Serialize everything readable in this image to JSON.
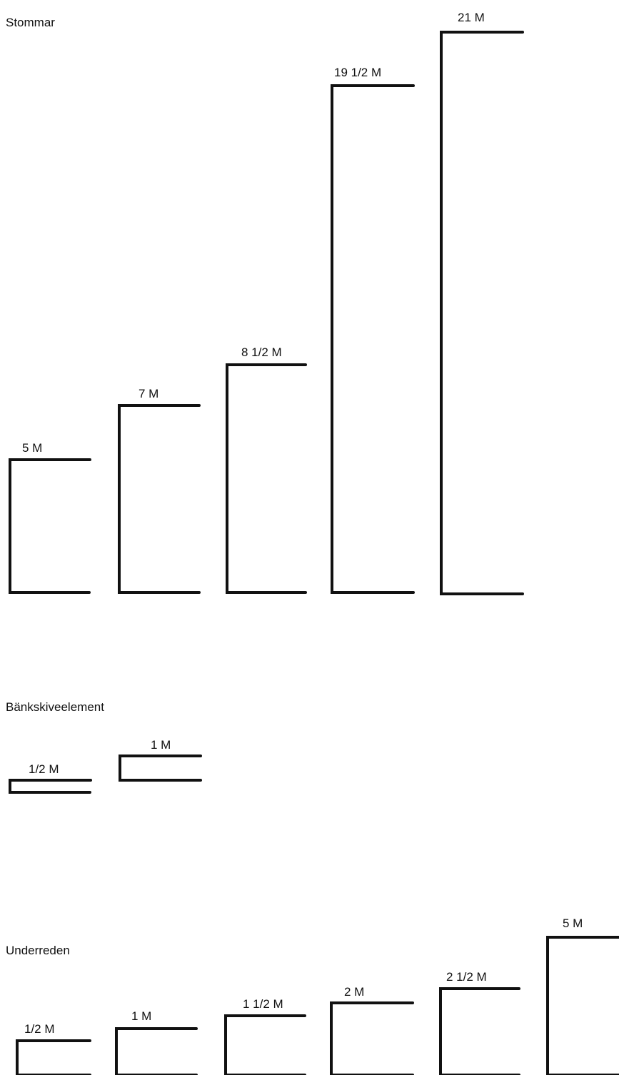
{
  "sections": {
    "stommar": {
      "title": "Stommar",
      "items": [
        {
          "label": "5 M"
        },
        {
          "label": "7 M"
        },
        {
          "label": "8 1/2 M"
        },
        {
          "label": "19 1/2 M"
        },
        {
          "label": "21 M"
        }
      ]
    },
    "bankskiveelement": {
      "title": "Bänkskiveelement",
      "items": [
        {
          "label": "1/2 M"
        },
        {
          "label": "1 M"
        }
      ]
    },
    "underreden": {
      "title": "Underreden",
      "items": [
        {
          "label": "1/2 M"
        },
        {
          "label": "1 M"
        },
        {
          "label": "1 1/2 M"
        },
        {
          "label": "2 M"
        },
        {
          "label": "2 1/2 M"
        },
        {
          "label": "5 M"
        }
      ]
    }
  }
}
